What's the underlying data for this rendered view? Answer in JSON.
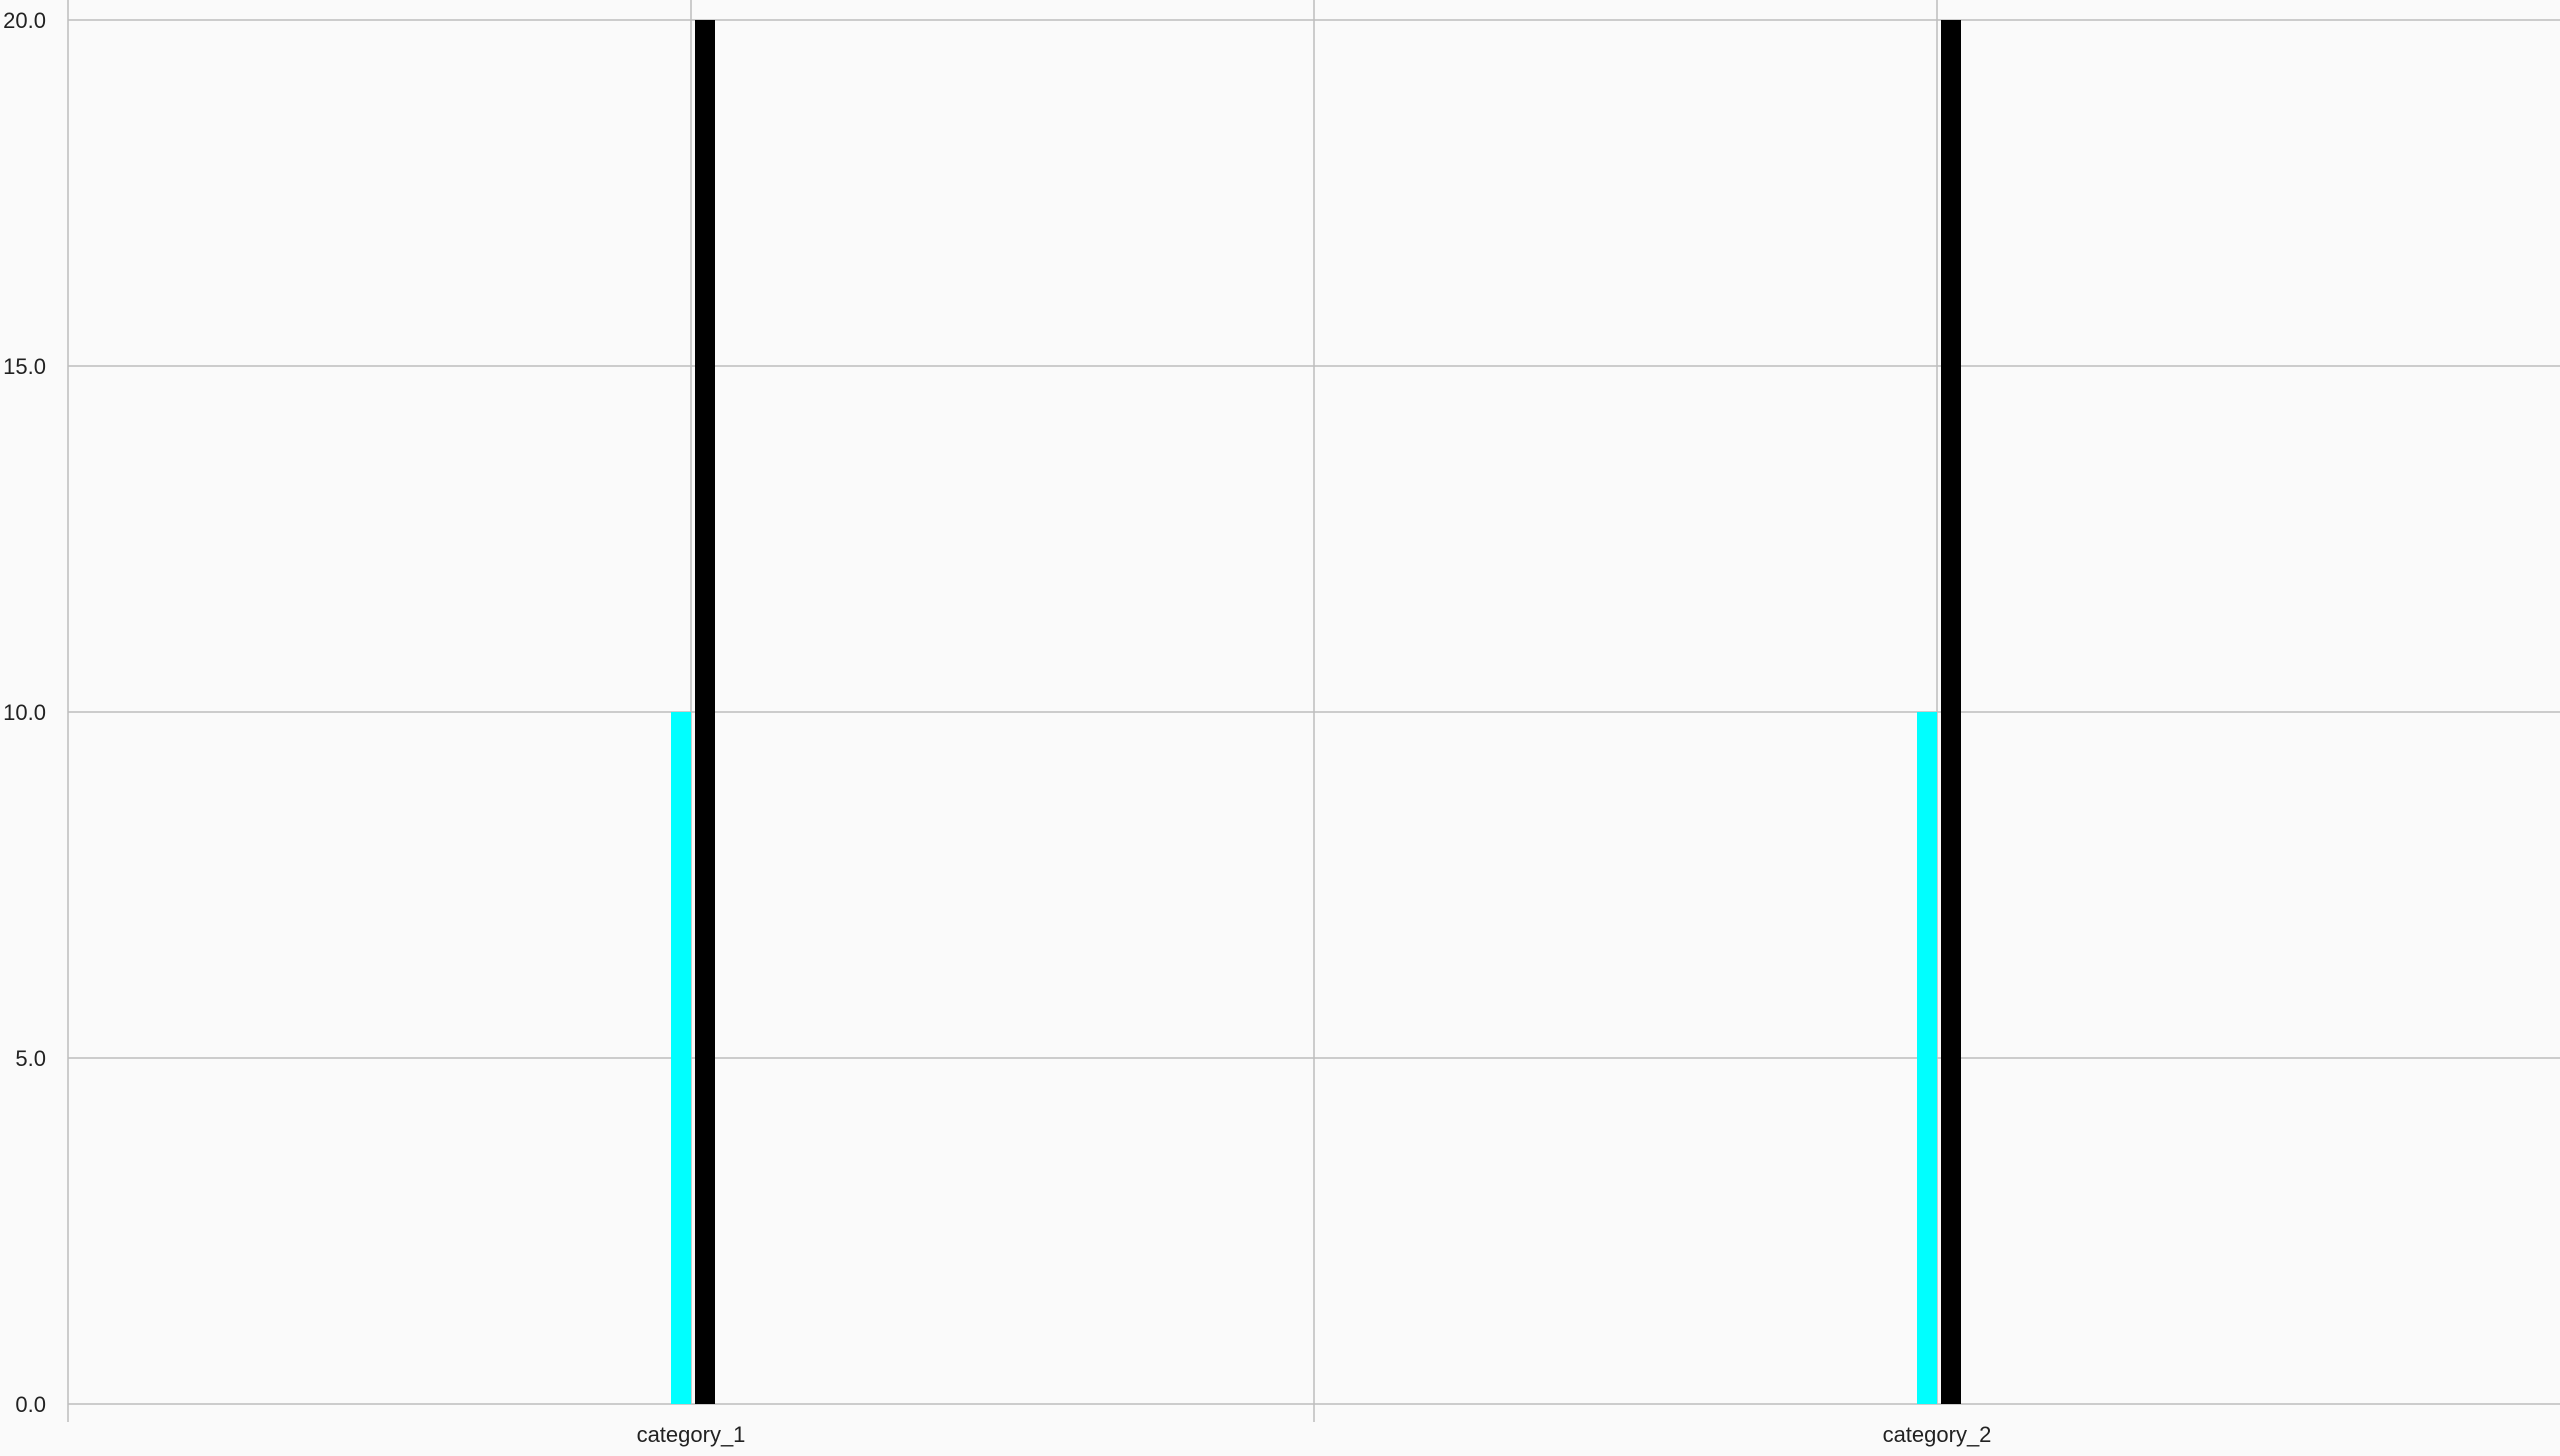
{
  "chart_data": {
    "type": "bar",
    "categories": [
      "category_1",
      "category_2"
    ],
    "series": [
      {
        "values": [
          10,
          10
        ],
        "color": "#00ffff"
      },
      {
        "values": [
          20,
          20
        ],
        "color": "#000000"
      }
    ],
    "ylim": [
      0,
      20
    ],
    "yticks": [
      "0.0",
      "5.0",
      "10.0",
      "15.0",
      "20.0"
    ],
    "ytick_values": [
      0,
      5,
      10,
      15,
      20
    ],
    "grid": true,
    "legend": "none",
    "background": "#fafafa",
    "grid_color": "#bdbdbd"
  }
}
